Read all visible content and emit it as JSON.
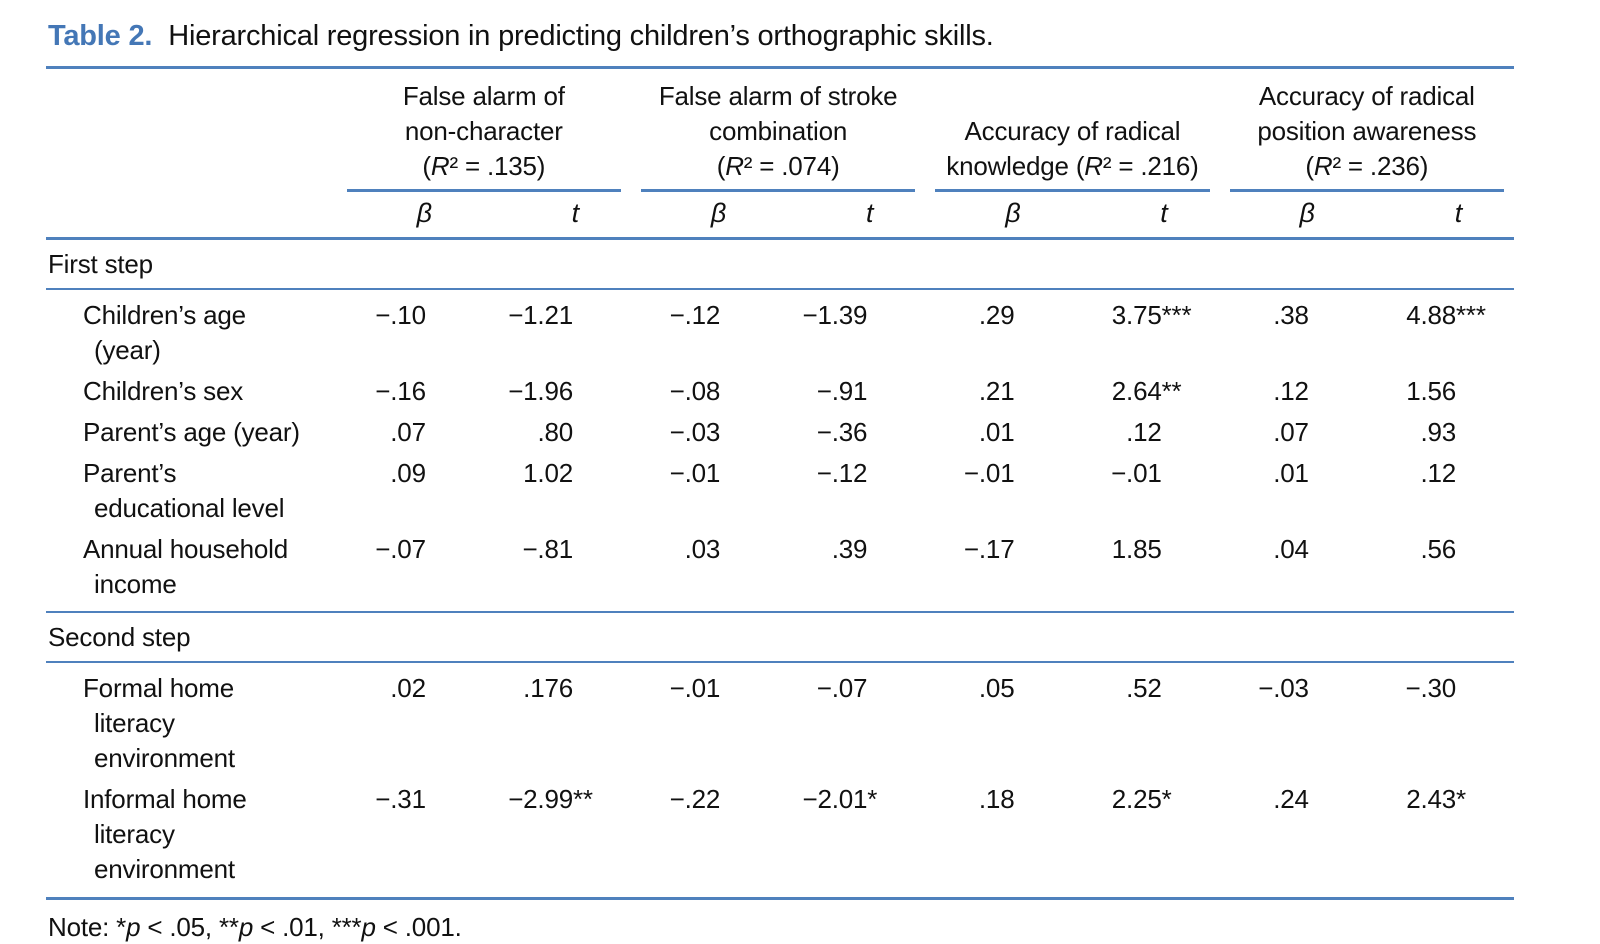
{
  "title": {
    "label": "Table 2.",
    "text": "Hierarchical regression in predicting children’s orthographic skills."
  },
  "columns": {
    "groups": [
      {
        "header": "False alarm of\nnon-character\n(R² = .135)"
      },
      {
        "header": "False alarm of stroke\ncombination\n(R² = .074)"
      },
      {
        "header": "Accuracy of radical\nknowledge (R² = .216)"
      },
      {
        "header": "Accuracy of radical\nposition awareness\n(R² = .236)"
      }
    ],
    "beta": "β",
    "t": "t"
  },
  "sections": [
    {
      "label": "First step",
      "rows": [
        {
          "label": "Children’s age\n(year)",
          "values": [
            "−.10",
            "−1.21",
            "−.12",
            "−1.39",
            ".29",
            "3.75***",
            ".38",
            "4.88***"
          ]
        },
        {
          "label": "Children’s sex",
          "values": [
            "−.16",
            "−1.96",
            "−.08",
            "−.91",
            ".21",
            "2.64**",
            ".12",
            "1.56"
          ]
        },
        {
          "label": "Parent’s age (year)",
          "values": [
            ".07",
            ".80",
            "−.03",
            "−.36",
            ".01",
            ".12",
            ".07",
            ".93"
          ]
        },
        {
          "label": "Parent’s\neducational level",
          "values": [
            ".09",
            "1.02",
            "−.01",
            "−.12",
            "−.01",
            "−.01",
            ".01",
            ".12"
          ]
        },
        {
          "label": "Annual household\nincome",
          "values": [
            "−.07",
            "−.81",
            ".03",
            ".39",
            "−.17",
            "1.85",
            ".04",
            ".56"
          ]
        }
      ]
    },
    {
      "label": "Second step",
      "rows": [
        {
          "label": "Formal home\nliteracy\nenvironment",
          "values": [
            ".02",
            ".176",
            "−.01",
            "−.07",
            ".05",
            ".52",
            "−.03",
            "−.30"
          ]
        },
        {
          "label": "Informal home\nliteracy\nenvironment",
          "values": [
            "−.31",
            "−2.99**",
            "−.22",
            "−2.01*",
            ".18",
            "2.25*",
            ".24",
            "2.43*"
          ]
        }
      ]
    }
  ],
  "note": "Note: *p < .05, **p < .01, ***p < .001.",
  "colors": {
    "rule_blue": "#4f81bd",
    "title_blue": "#4477b6",
    "text": "#111111"
  }
}
